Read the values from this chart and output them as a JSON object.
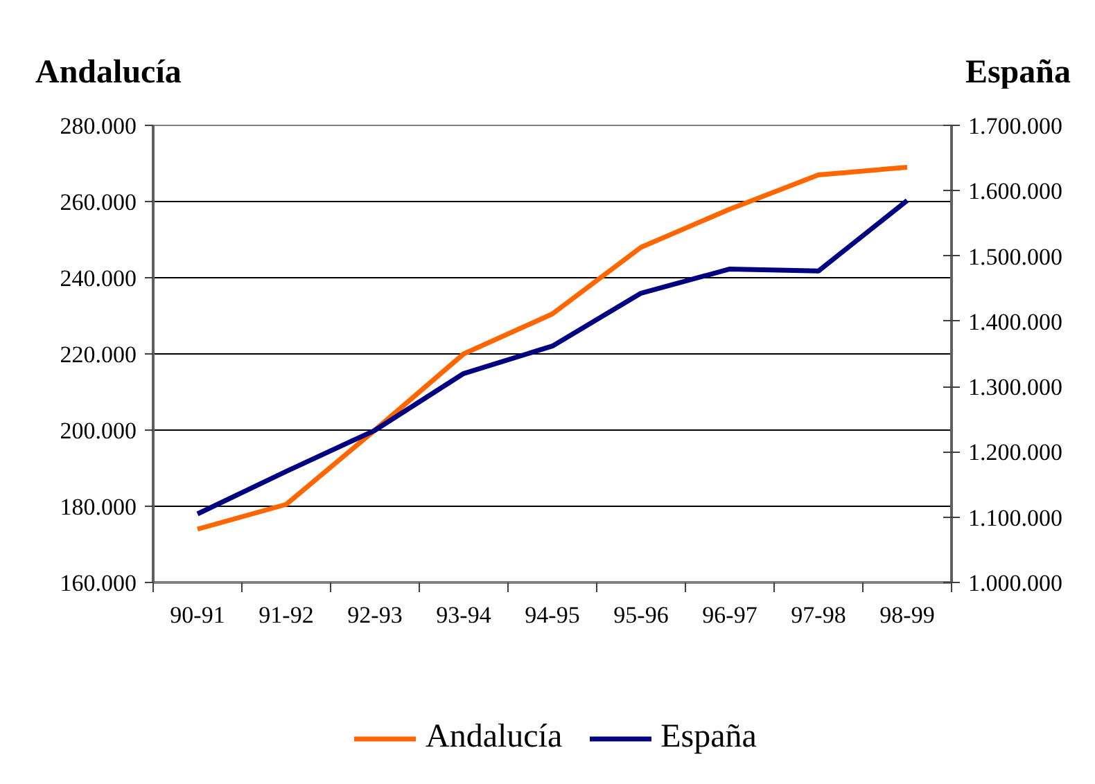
{
  "chart_data": {
    "type": "line",
    "ylabel": "Andalucía",
    "y2label": "España",
    "categories": [
      "90-91",
      "91-92",
      "92-93",
      "93-94",
      "94-95",
      "95-96",
      "96-97",
      "97-98",
      "98-99"
    ],
    "series": [
      {
        "name": "Andalucía",
        "color": "#ff6600",
        "values": [
          174000,
          180500,
          200000,
          220000,
          230500,
          248000,
          258000,
          267000,
          269000
        ]
      },
      {
        "name": "España",
        "color": "#000080",
        "axis": "y2",
        "values": [
          1105000,
          1170000,
          1233000,
          1320000,
          1362000,
          1443000,
          1480000,
          1477000,
          1585000
        ]
      }
    ],
    "ylim": [
      160000,
      280000
    ],
    "yticks": [
      {
        "value": 160000,
        "label": "160.000"
      },
      {
        "value": 180000,
        "label": "180.000"
      },
      {
        "value": 200000,
        "label": "200.000"
      },
      {
        "value": 220000,
        "label": "220.000"
      },
      {
        "value": 240000,
        "label": "240.000"
      },
      {
        "value": 260000,
        "label": "260.000"
      },
      {
        "value": 280000,
        "label": "280.000"
      }
    ],
    "y2lim": [
      1000000,
      1700000
    ],
    "y2ticks": [
      {
        "value": 1000000,
        "label": "1.000.000"
      },
      {
        "value": 1100000,
        "label": "1.100.000"
      },
      {
        "value": 1200000,
        "label": "1.200.000"
      },
      {
        "value": 1300000,
        "label": "1.300.000"
      },
      {
        "value": 1400000,
        "label": "1.400.000"
      },
      {
        "value": 1500000,
        "label": "1.500.000"
      },
      {
        "value": 1600000,
        "label": "1.600.000"
      },
      {
        "value": 1700000,
        "label": "1.700.000"
      }
    ],
    "grid": "y",
    "legend": "bottom"
  }
}
